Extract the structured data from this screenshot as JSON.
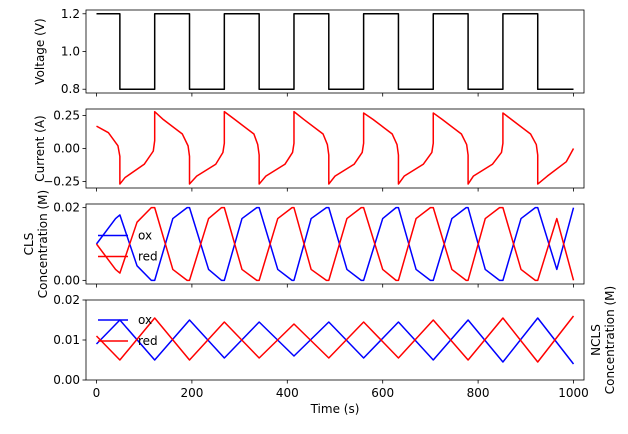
{
  "chart_data": [
    {
      "type": "line",
      "ylabel": "Voltage (V)",
      "ylabel_side": "left",
      "xlim": [
        -22,
        1022
      ],
      "ylim": [
        0.78,
        1.22
      ],
      "yticks": [
        0.8,
        1.0,
        1.2
      ],
      "ytick_labels": [
        "0.8",
        "1.0",
        "1.2"
      ],
      "xticks": [
        0,
        200,
        400,
        600,
        800,
        1000
      ],
      "show_xtick_labels": false,
      "legend": false,
      "series": [
        {
          "color": "#000000",
          "x": [
            0,
            49,
            49,
            122,
            122,
            195,
            195,
            268,
            268,
            341,
            341,
            414,
            414,
            487,
            487,
            560,
            560,
            633,
            633,
            706,
            706,
            779,
            779,
            852,
            852,
            925,
            925,
            1000
          ],
          "y": [
            1.2,
            1.2,
            0.8,
            0.8,
            1.2,
            1.2,
            0.8,
            0.8,
            1.2,
            1.2,
            0.8,
            0.8,
            1.2,
            1.2,
            0.8,
            0.8,
            1.2,
            1.2,
            0.8,
            0.8,
            1.2,
            1.2,
            0.8,
            0.8,
            1.2,
            1.2,
            0.8,
            0.8
          ]
        }
      ]
    },
    {
      "type": "line",
      "ylabel": "Current (A)",
      "ylabel_side": "left",
      "xlim": [
        -22,
        1022
      ],
      "ylim": [
        -0.3,
        0.3
      ],
      "yticks": [
        -0.25,
        0.0,
        0.25
      ],
      "ytick_labels": [
        "−0.25",
        "0.00",
        "0.25"
      ],
      "xticks": [
        0,
        200,
        400,
        600,
        800,
        1000
      ],
      "show_xtick_labels": false,
      "legend": false,
      "series": [
        {
          "color": "#ff0000",
          "x": [
            0,
            25,
            45,
            49,
            49,
            60,
            100,
            119,
            122,
            122,
            140,
            180,
            192,
            195,
            195,
            210,
            250,
            265,
            268,
            268,
            290,
            330,
            338,
            341,
            341,
            355,
            395,
            411,
            414,
            414,
            435,
            475,
            484,
            487,
            487,
            500,
            540,
            557,
            560,
            560,
            580,
            620,
            630,
            633,
            633,
            645,
            685,
            703,
            706,
            706,
            725,
            765,
            776,
            779,
            779,
            790,
            830,
            849,
            852,
            852,
            870,
            910,
            922,
            925,
            925,
            945,
            985,
            1000
          ],
          "y": [
            0.17,
            0.12,
            0.02,
            -0.06,
            -0.27,
            -0.22,
            -0.12,
            -0.02,
            0.06,
            0.28,
            0.22,
            0.11,
            0.02,
            -0.06,
            -0.27,
            -0.21,
            -0.12,
            -0.03,
            0.04,
            0.28,
            0.22,
            0.11,
            0.03,
            -0.05,
            -0.27,
            -0.21,
            -0.12,
            -0.03,
            0.04,
            0.28,
            0.22,
            0.11,
            0.03,
            -0.05,
            -0.27,
            -0.21,
            -0.12,
            -0.03,
            0.04,
            0.27,
            0.22,
            0.11,
            0.03,
            -0.05,
            -0.27,
            -0.21,
            -0.12,
            -0.03,
            0.04,
            0.27,
            0.22,
            0.11,
            0.03,
            -0.05,
            -0.27,
            -0.21,
            -0.12,
            -0.03,
            0.04,
            0.27,
            0.22,
            0.11,
            0.03,
            -0.05,
            -0.27,
            -0.21,
            -0.1,
            0.0
          ]
        }
      ]
    },
    {
      "type": "line",
      "ylabel": "CLS\nConcentration (M)",
      "ylabel_side": "left",
      "xlim": [
        -22,
        1022
      ],
      "ylim": [
        -0.001,
        0.021
      ],
      "yticks": [
        0.0,
        0.02
      ],
      "ytick_labels": [
        "0.00",
        "0.02"
      ],
      "xticks": [
        0,
        200,
        400,
        600,
        800,
        1000
      ],
      "show_xtick_labels": false,
      "legend": true,
      "legend_loc": "center-left",
      "series": [
        {
          "name": "ox",
          "color": "#0000ff",
          "x": [
            0,
            40,
            49,
            85,
            115,
            122,
            160,
            190,
            195,
            235,
            262,
            268,
            305,
            336,
            341,
            380,
            410,
            414,
            450,
            482,
            487,
            525,
            555,
            560,
            600,
            628,
            633,
            670,
            700,
            706,
            745,
            775,
            779,
            815,
            845,
            852,
            890,
            920,
            925,
            965,
            1000
          ],
          "y": [
            0.01,
            0.017,
            0.018,
            0.004,
            0.0,
            0.0,
            0.017,
            0.02,
            0.02,
            0.003,
            0.0,
            0.0,
            0.017,
            0.02,
            0.02,
            0.003,
            0.0,
            0.0,
            0.017,
            0.02,
            0.02,
            0.003,
            0.0,
            0.0,
            0.017,
            0.02,
            0.02,
            0.003,
            0.0,
            0.0,
            0.017,
            0.02,
            0.02,
            0.003,
            0.0,
            0.0,
            0.017,
            0.02,
            0.02,
            0.003,
            0.02
          ]
        },
        {
          "name": "red",
          "color": "#ff0000",
          "x": [
            0,
            40,
            49,
            85,
            115,
            122,
            160,
            190,
            195,
            235,
            262,
            268,
            305,
            336,
            341,
            380,
            410,
            414,
            450,
            482,
            487,
            525,
            555,
            560,
            600,
            628,
            633,
            670,
            700,
            706,
            745,
            775,
            779,
            815,
            845,
            852,
            890,
            920,
            925,
            965,
            1000
          ],
          "y": [
            0.01,
            0.003,
            0.002,
            0.016,
            0.02,
            0.02,
            0.003,
            0.0,
            0.0,
            0.017,
            0.02,
            0.02,
            0.003,
            0.0,
            0.0,
            0.017,
            0.02,
            0.02,
            0.003,
            0.0,
            0.0,
            0.017,
            0.02,
            0.02,
            0.003,
            0.0,
            0.0,
            0.017,
            0.02,
            0.02,
            0.003,
            0.0,
            0.0,
            0.017,
            0.02,
            0.02,
            0.003,
            0.0,
            0.0,
            0.017,
            0.0
          ]
        }
      ]
    },
    {
      "type": "line",
      "ylabel": "NCLS\nConcentration (M)",
      "ylabel_side": "right",
      "xlabel": "Time (s)",
      "xlim": [
        -22,
        1022
      ],
      "ylim": [
        0.0,
        0.02
      ],
      "yticks": [
        0.0,
        0.01,
        0.02
      ],
      "ytick_labels": [
        "0.00",
        "0.01",
        "0.02"
      ],
      "xticks": [
        0,
        200,
        400,
        600,
        800,
        1000
      ],
      "xtick_labels": [
        "0",
        "200",
        "400",
        "600",
        "800",
        "1000"
      ],
      "show_xtick_labels": true,
      "legend": true,
      "legend_loc": "upper-left",
      "series": [
        {
          "name": "ox",
          "color": "#0000ff",
          "x": [
            0,
            49,
            122,
            195,
            268,
            341,
            414,
            487,
            560,
            633,
            706,
            779,
            852,
            925,
            1000
          ],
          "y": [
            0.009,
            0.015,
            0.005,
            0.015,
            0.0055,
            0.0145,
            0.006,
            0.0145,
            0.0055,
            0.0145,
            0.005,
            0.015,
            0.0045,
            0.0155,
            0.004
          ]
        },
        {
          "name": "red",
          "color": "#ff0000",
          "x": [
            0,
            49,
            122,
            195,
            268,
            341,
            414,
            487,
            560,
            633,
            706,
            779,
            852,
            925,
            1000
          ],
          "y": [
            0.011,
            0.005,
            0.0155,
            0.005,
            0.0145,
            0.0055,
            0.014,
            0.0055,
            0.0145,
            0.0055,
            0.015,
            0.005,
            0.0155,
            0.0045,
            0.016
          ]
        }
      ]
    }
  ]
}
